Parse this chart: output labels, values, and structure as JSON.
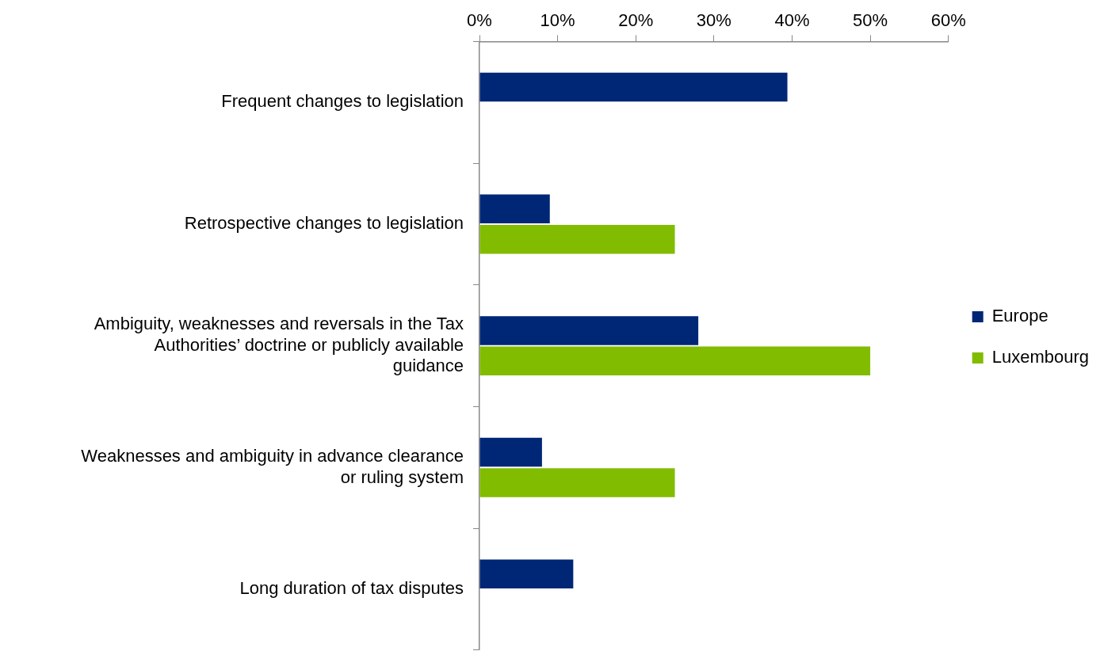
{
  "chart_data": {
    "type": "bar",
    "orientation": "horizontal",
    "categories": [
      "Frequent changes to legislation",
      "Retrospective changes to legislation",
      "Ambiguity, weaknesses and reversals in the Tax Authorities’ doctrine or publicly available guidance",
      "Weaknesses and ambiguity in advance clearance or ruling system",
      "Long duration of tax disputes"
    ],
    "series": [
      {
        "name": "Europe",
        "color": "#002776",
        "values": [
          39.4,
          9,
          28,
          8,
          12
        ]
      },
      {
        "name": "Luxembourg",
        "color": "#81bc00",
        "values": [
          null,
          25,
          50,
          25,
          null
        ]
      }
    ],
    "xlim": [
      0,
      60
    ],
    "xticks": [
      {
        "value": 0,
        "label": "0%"
      },
      {
        "value": 10,
        "label": "10%"
      },
      {
        "value": 20,
        "label": "20%"
      },
      {
        "value": 30,
        "label": "30%"
      },
      {
        "value": 40,
        "label": "40%"
      },
      {
        "value": 50,
        "label": "50%"
      },
      {
        "value": 60,
        "label": "60%"
      }
    ],
    "grid": false,
    "legend": "right"
  }
}
